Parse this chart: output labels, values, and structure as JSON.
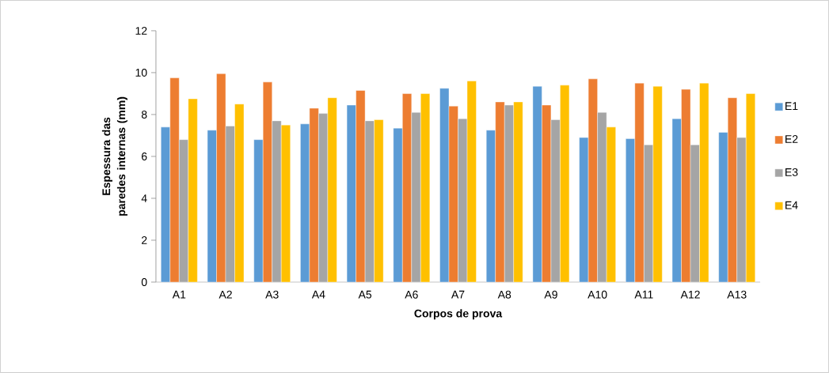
{
  "chart_data": {
    "type": "bar",
    "xlabel": "Corpos de prova",
    "ylabel": "Espessura das paredes internas (mm)",
    "categories": [
      "A1",
      "A2",
      "A3",
      "A4",
      "A5",
      "A6",
      "A7",
      "A8",
      "A9",
      "A10",
      "A11",
      "A12",
      "A13"
    ],
    "series": [
      {
        "name": "E1",
        "color": "#5b9bd5",
        "values": [
          7.4,
          7.25,
          6.8,
          7.55,
          8.45,
          7.35,
          9.25,
          7.25,
          9.35,
          6.9,
          6.85,
          7.8,
          7.15
        ]
      },
      {
        "name": "E2",
        "color": "#ed7d31",
        "values": [
          9.75,
          9.95,
          9.55,
          8.3,
          9.15,
          9.0,
          8.4,
          8.6,
          8.45,
          9.7,
          9.5,
          9.2,
          8.8
        ]
      },
      {
        "name": "E3",
        "color": "#a5a5a5",
        "values": [
          6.8,
          7.45,
          7.7,
          8.05,
          7.7,
          8.1,
          7.8,
          8.45,
          7.75,
          8.1,
          6.55,
          6.55,
          6.9
        ]
      },
      {
        "name": "E4",
        "color": "#ffc000",
        "values": [
          8.75,
          8.5,
          7.5,
          8.8,
          7.75,
          9.0,
          9.6,
          8.6,
          9.4,
          7.4,
          9.35,
          9.5,
          9.0
        ]
      }
    ],
    "ylim": [
      0,
      12
    ],
    "yticks": [
      0,
      2,
      4,
      6,
      8,
      10,
      12
    ],
    "grid": false,
    "legend": "right"
  }
}
